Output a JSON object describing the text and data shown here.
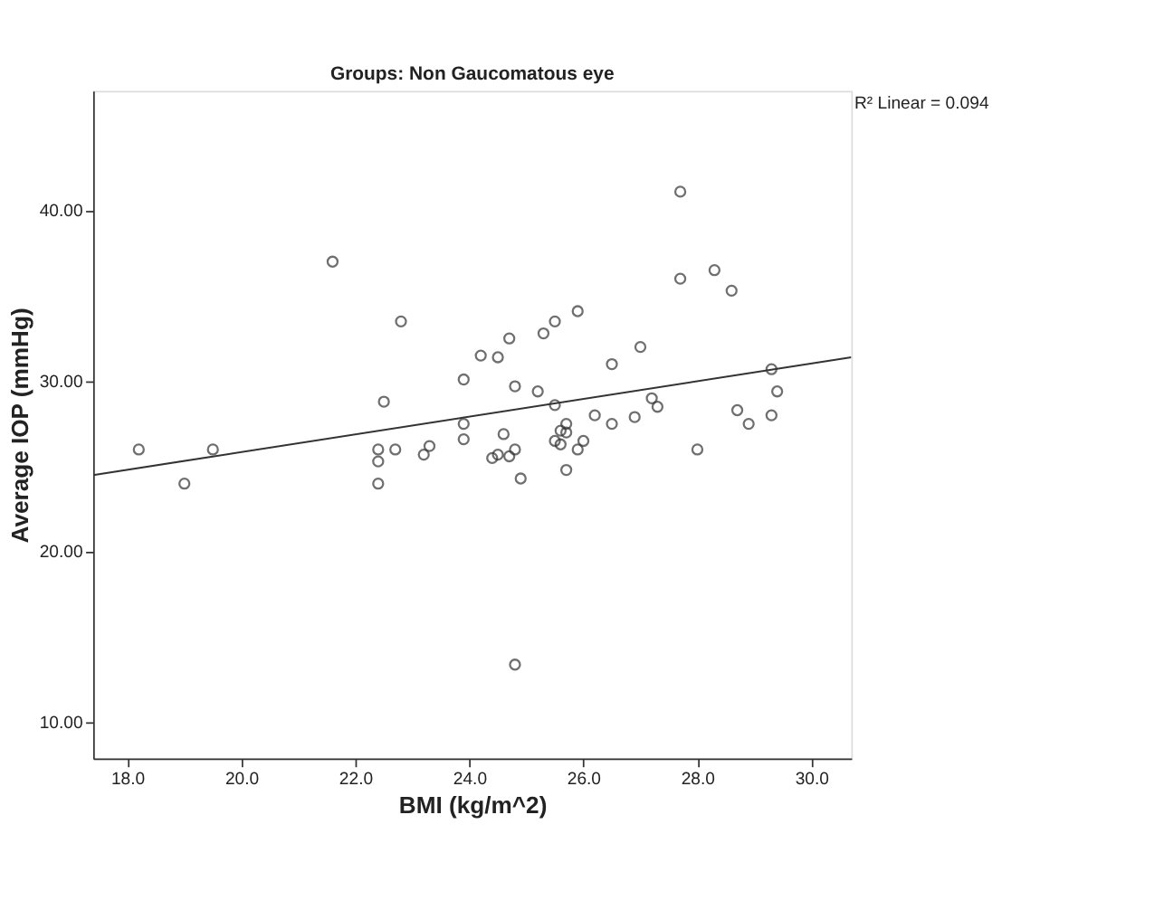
{
  "chart_data": {
    "type": "scatter",
    "title": "Groups: Non Gaucomatous eye",
    "xlabel": "BMI (kg/m^2)",
    "ylabel": "Average IOP (mmHg)",
    "xlim": [
      17.4,
      30.7
    ],
    "ylim": [
      7.9,
      47.0
    ],
    "xticks": [
      {
        "value": 18,
        "label": "18.0"
      },
      {
        "value": 20,
        "label": "20.0"
      },
      {
        "value": 22,
        "label": "22.0"
      },
      {
        "value": 24,
        "label": "24.0"
      },
      {
        "value": 26,
        "label": "26.0"
      },
      {
        "value": 28,
        "label": "28.0"
      },
      {
        "value": 30,
        "label": "30.0"
      }
    ],
    "yticks": [
      {
        "value": 10,
        "label": "10.00"
      },
      {
        "value": 20,
        "label": "20.00"
      },
      {
        "value": 30,
        "label": "30.00"
      },
      {
        "value": 40,
        "label": "40.00"
      }
    ],
    "grid": false,
    "marker": "circle",
    "annotations": [
      "R² Linear = 0.094"
    ],
    "series": [
      {
        "color": "#333333",
        "x": [
          18.2,
          19.0,
          19.5,
          21.6,
          22.8,
          22.5,
          22.4,
          22.4,
          22.4,
          22.7,
          23.2,
          23.3,
          23.9,
          23.9,
          23.9,
          24.2,
          24.5,
          24.7,
          24.8,
          24.6,
          24.4,
          24.5,
          24.7,
          24.8,
          24.9,
          27.7,
          27.7,
          28.3,
          28.6,
          25.9,
          25.5,
          25.3,
          27.0,
          26.5,
          29.3,
          29.4,
          25.2,
          25.5,
          27.2,
          27.3,
          26.2,
          26.5,
          26.9,
          28.7,
          28.9,
          29.3,
          25.7,
          25.6,
          25.7,
          25.5,
          25.6,
          25.9,
          26.0,
          25.7,
          28.0,
          24.8
        ],
        "values": [
          26.0,
          24.0,
          26.0,
          37.0,
          33.5,
          28.8,
          26.0,
          25.3,
          24.0,
          26.0,
          25.7,
          26.2,
          30.1,
          27.5,
          26.6,
          31.5,
          31.4,
          32.5,
          29.7,
          26.9,
          25.5,
          25.7,
          25.6,
          26.0,
          24.3,
          41.1,
          36.0,
          36.5,
          35.3,
          34.1,
          33.5,
          32.8,
          32.0,
          31.0,
          30.7,
          29.4,
          29.4,
          28.6,
          29.0,
          28.5,
          28.0,
          27.5,
          27.9,
          28.3,
          27.5,
          28.0,
          27.5,
          27.1,
          27.0,
          26.5,
          26.3,
          26.0,
          26.5,
          24.8,
          26.0,
          13.4
        ]
      },
      {
        "type": "line",
        "color": "#333333",
        "x": [
          17.4,
          30.7
        ],
        "values": [
          24.5,
          31.4
        ],
        "marker": "none",
        "line_style": "solid"
      }
    ]
  }
}
